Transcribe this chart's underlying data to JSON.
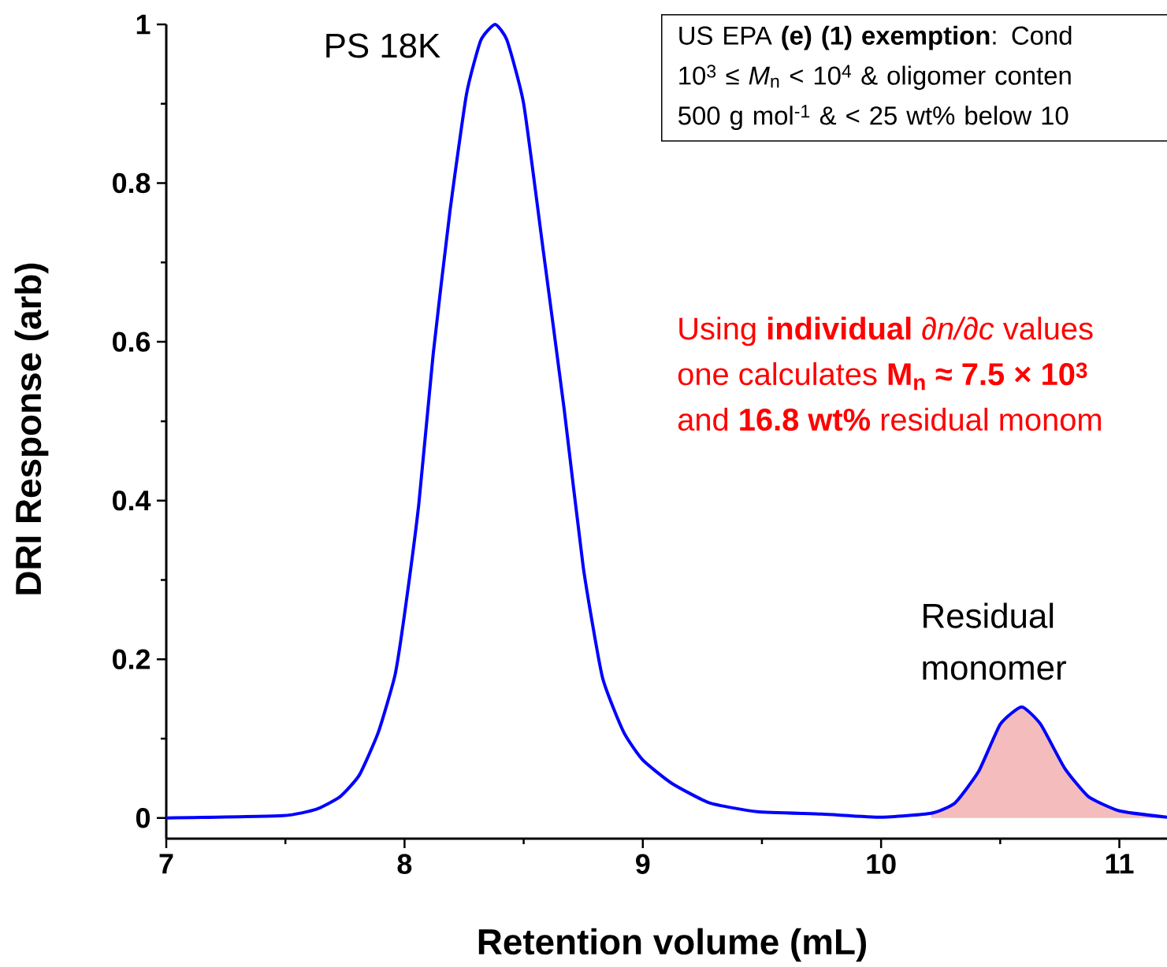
{
  "chart_data": {
    "type": "line",
    "xlabel": "Retention volume (mL)",
    "ylabel": "DRI Response (arb)",
    "xlim": [
      7,
      11.2
    ],
    "ylim": [
      -0.026,
      1
    ],
    "xticks": [
      7,
      8,
      9,
      10,
      11
    ],
    "yticks": [
      0,
      0.2,
      0.4,
      0.6,
      0.8,
      1
    ],
    "annotations": [
      "PS 18K",
      "Residual monomer",
      "US EPA **(e) (1) exemption**: Cond",
      "10$^{3}$ ≤ *M*$_{n}$ < 10$^{4}$ & oligomer conten",
      "500 g mol$^{-1}$ & < 25 wt% below 10",
      "Using **individual** *∂n/∂c* values",
      "one calculates **M$_{n}$ ≈ 7.5 × 10$^{3}$**",
      "and **16.8 wt%** residual monom"
    ],
    "series": [
      {
        "type": "area",
        "color": "#f4bcbc",
        "x": [
          10.21,
          10.31,
          10.41,
          10.5,
          10.59,
          10.67,
          10.77,
          10.87,
          11.0,
          11.2
        ],
        "values": [
          0.006,
          0.019,
          0.059,
          0.118,
          0.14,
          0.118,
          0.063,
          0.027,
          0.009,
          0.001
        ]
      },
      {
        "color": "#0000ff",
        "x": [
          7,
          7.49,
          7.63,
          7.73,
          7.81,
          7.89,
          7.96,
          8.0,
          8.06,
          8.12,
          8.19,
          8.26,
          8.32,
          8.38,
          8.43,
          8.5,
          8.58,
          8.67,
          8.75,
          8.83,
          8.92,
          9.0,
          9.12,
          9.28,
          9.48,
          9.75,
          10.0,
          10.21,
          10.31,
          10.41,
          10.5,
          10.59,
          10.67,
          10.77,
          10.87,
          11.0,
          11.2
        ],
        "values": [
          0,
          0.003,
          0.011,
          0.027,
          0.054,
          0.108,
          0.18,
          0.257,
          0.396,
          0.584,
          0.763,
          0.912,
          0.98,
          1.0,
          0.98,
          0.9,
          0.72,
          0.515,
          0.316,
          0.178,
          0.108,
          0.073,
          0.044,
          0.019,
          0.008,
          0.005,
          0.001,
          0.006,
          0.019,
          0.059,
          0.118,
          0.14,
          0.118,
          0.063,
          0.027,
          0.009,
          0.001
        ]
      }
    ]
  }
}
